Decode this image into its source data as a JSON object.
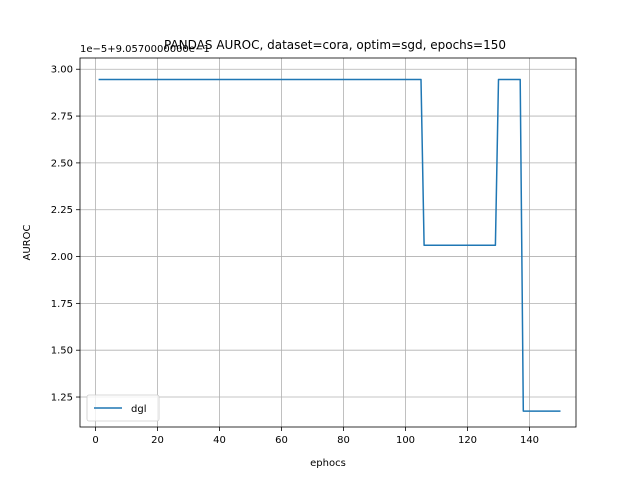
{
  "chart_data": {
    "type": "line",
    "title": "PANDAS AUROC, dataset=cora, optim=sgd, epochs=150",
    "xlabel": "ephocs",
    "ylabel": "AUROC",
    "y_offset_label": "1e−5+9.0570000000e−1",
    "xlim": [
      -5,
      155
    ],
    "ylim": [
      1.09,
      3.06
    ],
    "x_ticks": [
      0,
      20,
      40,
      60,
      80,
      100,
      120,
      140
    ],
    "x_tick_labels": [
      "0",
      "20",
      "40",
      "60",
      "80",
      "100",
      "120",
      "140"
    ],
    "y_ticks": [
      1.25,
      1.5,
      1.75,
      2.0,
      2.25,
      2.5,
      2.75,
      3.0
    ],
    "y_tick_labels": [
      "1.25",
      "1.50",
      "1.75",
      "2.00",
      "2.25",
      "2.50",
      "2.75",
      "3.00"
    ],
    "grid": true,
    "legend_position": "lower-left",
    "series": [
      {
        "name": "dgl",
        "color": "#1f77b4",
        "x": [
          1,
          105,
          106,
          129,
          130,
          137,
          138,
          150
        ],
        "y": [
          2.945,
          2.945,
          2.06,
          2.06,
          2.945,
          2.945,
          1.175,
          1.175
        ]
      }
    ]
  }
}
